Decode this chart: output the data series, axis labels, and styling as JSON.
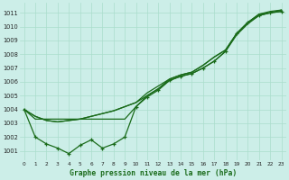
{
  "title": "Graphe pression niveau de la mer (hPa)",
  "bg_color": "#cceee8",
  "grid_color": "#aaddcc",
  "line_color": "#1a6b1a",
  "x_ticks": [
    0,
    1,
    2,
    3,
    4,
    5,
    6,
    7,
    8,
    9,
    10,
    11,
    12,
    13,
    14,
    15,
    16,
    17,
    18,
    19,
    20,
    21,
    22,
    23
  ],
  "y_ticks": [
    1001,
    1002,
    1003,
    1004,
    1005,
    1006,
    1007,
    1008,
    1009,
    1010,
    1011
  ],
  "ylim": [
    1000.3,
    1011.7
  ],
  "xlim": [
    -0.4,
    23.4
  ],
  "series_smooth_upper": [
    1004.0,
    1003.5,
    1003.2,
    1003.1,
    1003.2,
    1003.3,
    1003.5,
    1003.7,
    1003.9,
    1004.2,
    1004.5,
    1005.2,
    1005.7,
    1006.2,
    1006.5,
    1006.7,
    1007.2,
    1007.8,
    1008.3,
    1009.5,
    1010.3,
    1010.9,
    1011.0,
    1011.2
  ],
  "series_smooth_lower": [
    1004.0,
    1003.5,
    1003.2,
    1003.1,
    1003.2,
    1003.3,
    1003.5,
    1003.7,
    1003.9,
    1004.2,
    1004.5,
    1005.0,
    1005.5,
    1006.1,
    1006.4,
    1006.6,
    1007.0,
    1007.5,
    1008.2,
    1009.4,
    1010.2,
    1010.8,
    1011.0,
    1011.1
  ],
  "series_flat": [
    1004.0,
    1003.3,
    1003.3,
    1003.3,
    1003.3,
    1003.3,
    1003.3,
    1003.3,
    1003.3,
    1003.3,
    1004.2,
    1005.0,
    1005.5,
    1006.2,
    1006.5,
    1006.7,
    1007.2,
    1007.8,
    1008.3,
    1009.5,
    1010.3,
    1010.9,
    1011.1,
    1011.2
  ],
  "series_zigzag": [
    1004.0,
    1002.0,
    1001.5,
    1001.2,
    1000.8,
    1001.4,
    1001.8,
    1001.2,
    1001.5,
    1002.0,
    1004.2,
    1004.9,
    1005.4,
    1006.1,
    1006.4,
    1006.6,
    1007.0,
    1007.5,
    1008.2,
    1009.5,
    1010.3,
    1010.8,
    1011.0,
    1011.1
  ]
}
